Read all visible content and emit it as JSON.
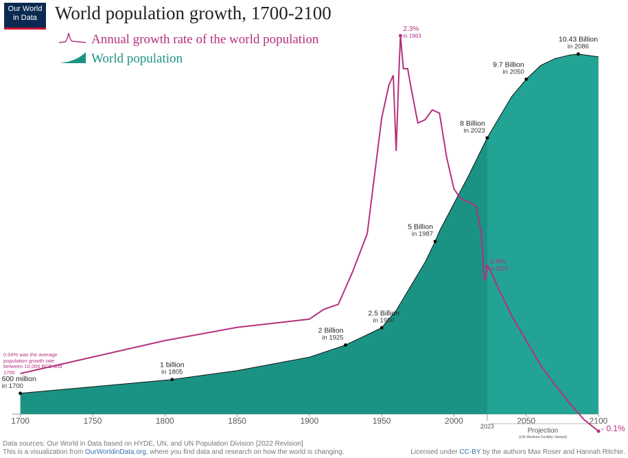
{
  "logo": "Our World in Data",
  "chart_data": {
    "type": "area",
    "title": "World population growth, 1700-2100",
    "xlim": [
      1694,
      2100
    ],
    "xticks": [
      1700,
      1750,
      1800,
      1850,
      1900,
      1950,
      2000,
      2050,
      2100
    ],
    "ylim": [
      0,
      11.2
    ],
    "y2lim": [
      -0.15,
      2.35
    ],
    "projection": {
      "start": 2023,
      "label": "Projection",
      "note": "(UN Medium Fertility Variant)"
    },
    "series": [
      {
        "name": "World population",
        "color": "#22a394",
        "history_color": "#1b9384",
        "x": [
          1700,
          1750,
          1800,
          1805,
          1850,
          1900,
          1925,
          1950,
          1960,
          1970,
          1980,
          1987,
          1990,
          2000,
          2010,
          2023,
          2030,
          2040,
          2050,
          2060,
          2070,
          2080,
          2086,
          2100
        ],
        "values": [
          0.6,
          0.79,
          0.98,
          1.0,
          1.26,
          1.65,
          2.0,
          2.5,
          3.0,
          3.7,
          4.4,
          5.0,
          5.3,
          6.1,
          6.9,
          8.0,
          8.5,
          9.2,
          9.7,
          10.1,
          10.3,
          10.4,
          10.43,
          10.35
        ],
        "annotations": [
          {
            "x": 1700,
            "value": 0.6,
            "label": "600 million",
            "note": "in 1700"
          },
          {
            "x": 1805,
            "value": 1.0,
            "label": "1 billion",
            "note": "in 1805"
          },
          {
            "x": 1925,
            "value": 2.0,
            "label": "2 Billion",
            "note": "in 1925"
          },
          {
            "x": 1950,
            "value": 2.5,
            "label": "2.5 Billion",
            "note": "in 1950"
          },
          {
            "x": 1987,
            "value": 5.0,
            "label": "5 Billion",
            "note": "in 1987"
          },
          {
            "x": 2023,
            "value": 8.0,
            "label": "8 Billion",
            "note": "in 2023"
          },
          {
            "x": 2050,
            "value": 9.7,
            "label": "9.7 Billion",
            "note": "in 2050"
          },
          {
            "x": 2086,
            "value": 10.43,
            "label": "10.43 Billion",
            "note": "in 2086"
          }
        ]
      },
      {
        "name": "Annual growth rate of the world population",
        "color": "#b4307f",
        "axis": "y2",
        "x": [
          1700,
          1750,
          1800,
          1850,
          1900,
          1910,
          1920,
          1930,
          1940,
          1950,
          1955,
          1958,
          1960,
          1962,
          1963,
          1965,
          1968,
          1970,
          1975,
          1980,
          1985,
          1990,
          1995,
          2000,
          2005,
          2010,
          2015,
          2019,
          2020,
          2021,
          2022,
          2023,
          2025,
          2030,
          2040,
          2050,
          2060,
          2070,
          2080,
          2090,
          2100
        ],
        "values": [
          0.25,
          0.35,
          0.45,
          0.53,
          0.58,
          0.64,
          0.67,
          0.87,
          1.1,
          1.8,
          2.0,
          2.06,
          1.6,
          2.1,
          2.3,
          2.1,
          2.1,
          2.0,
          1.77,
          1.79,
          1.85,
          1.83,
          1.56,
          1.37,
          1.31,
          1.29,
          1.27,
          1.1,
          0.95,
          0.82,
          0.83,
          0.9,
          0.88,
          0.78,
          0.6,
          0.45,
          0.3,
          0.18,
          0.07,
          -0.03,
          -0.1
        ],
        "annotations": [
          {
            "x": 1963,
            "value": 2.3,
            "label": "2.3%",
            "note": "in 1963"
          },
          {
            "x": 2023,
            "value": 0.9,
            "label": "0.9%",
            "note": "in 2023"
          },
          {
            "x": 2100,
            "value": -0.1,
            "label": "- 0.1%"
          }
        ]
      }
    ],
    "note": "0.04% was the average population growth rate between 10,000 BCE and 1700"
  },
  "footer": {
    "sources": "Data sources: Our World in Data based on HYDE, UN, and UN Population Division [2022 Revision]",
    "visualization": [
      "This is a visualization from ",
      "OurWorldinData.org",
      ", where you find data and research on how the world is changing."
    ],
    "license": [
      "Licensed under ",
      "CC-BY",
      " by the authors Max Roser and Hannah Ritchie."
    ]
  }
}
